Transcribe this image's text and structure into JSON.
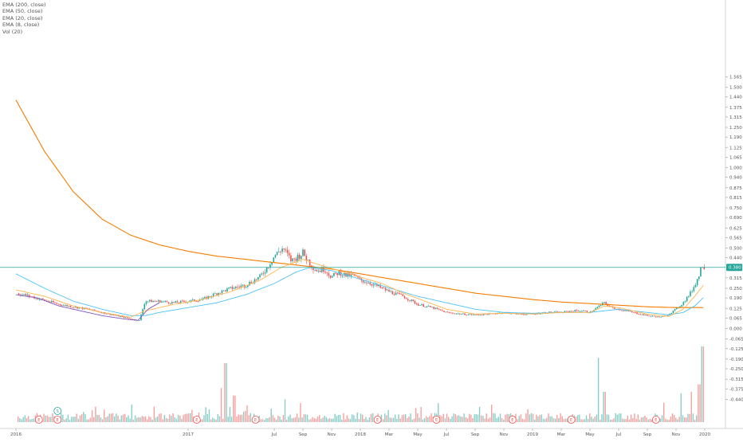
{
  "legend": {
    "ema200": "EMA (200, close)",
    "ema50": "EMA (50, close)",
    "ema20": "EMA (20, close)",
    "ema8": "EMA (8, close)",
    "vol": "Vol (20)"
  },
  "colors": {
    "up": "#26a69a",
    "down": "#ef5350",
    "ema200": "#f57c00",
    "ema50": "#4fc3f7",
    "ema20": "#ffb74d",
    "ema8": "#7e57c2",
    "last_line": "#26a69a",
    "event": "#ef5350",
    "event_split": "#26a69a"
  },
  "chart_data": {
    "type": "candlestick",
    "y_axis_ticks": [
      "1.565",
      "1.500",
      "1.440",
      "1.375",
      "1.315",
      "1.250",
      "1.190",
      "1.125",
      "1.065",
      "1.000",
      "0.940",
      "0.875",
      "0.815",
      "0.750",
      "0.690",
      "0.625",
      "0.565",
      "0.500",
      "0.440",
      "0.315",
      "0.250",
      "0.190",
      "0.125",
      "0.065",
      "0.000",
      "-0.065",
      "-0.125",
      "-0.190",
      "-0.250",
      "-0.315",
      "-0.375",
      "-0.440"
    ],
    "y_axis_values": [
      1.565,
      1.5,
      1.44,
      1.375,
      1.315,
      1.25,
      1.19,
      1.125,
      1.065,
      1.0,
      0.94,
      0.875,
      0.815,
      0.75,
      0.69,
      0.625,
      0.565,
      0.5,
      0.44,
      0.315,
      0.25,
      0.19,
      0.125,
      0.065,
      0.0,
      -0.065,
      -0.125,
      -0.19,
      -0.25,
      -0.315,
      -0.375,
      -0.44
    ],
    "x_axis_labels": [
      "2016",
      "2017",
      "Jul",
      "Sep",
      "Nov",
      "2018",
      "Mar",
      "May",
      "Jul",
      "Sep",
      "Nov",
      "2019",
      "Mar",
      "May",
      "Jul",
      "Sep",
      "Nov",
      "2020"
    ],
    "x_axis_months": [
      0,
      12,
      18,
      20,
      22,
      24,
      26,
      28,
      30,
      32,
      34,
      36,
      38,
      40,
      42,
      44,
      46,
      48
    ],
    "x_range_months": [
      0,
      47.5
    ],
    "last_price": 0.38,
    "last_price_label": "0.380",
    "price_keypoints": [
      [
        0.0,
        0.22
      ],
      [
        1.0,
        0.2
      ],
      [
        3.0,
        0.15
      ],
      [
        5.0,
        0.12
      ],
      [
        7.0,
        0.08
      ],
      [
        8.0,
        0.06
      ],
      [
        8.6,
        0.05
      ],
      [
        9.0,
        0.17
      ],
      [
        10.0,
        0.17
      ],
      [
        11.0,
        0.16
      ],
      [
        12.0,
        0.17
      ],
      [
        13.0,
        0.18
      ],
      [
        14.0,
        0.22
      ],
      [
        15.0,
        0.25
      ],
      [
        16.0,
        0.27
      ],
      [
        17.0,
        0.32
      ],
      [
        17.5,
        0.38
      ],
      [
        18.0,
        0.45
      ],
      [
        18.6,
        0.5
      ],
      [
        19.2,
        0.42
      ],
      [
        20.0,
        0.47
      ],
      [
        20.6,
        0.39
      ],
      [
        21.0,
        0.36
      ],
      [
        21.5,
        0.37
      ],
      [
        22.0,
        0.32
      ],
      [
        22.5,
        0.35
      ],
      [
        23.0,
        0.33
      ],
      [
        23.5,
        0.33
      ],
      [
        24.0,
        0.3
      ],
      [
        24.5,
        0.29
      ],
      [
        25.0,
        0.27
      ],
      [
        25.5,
        0.25
      ],
      [
        26.0,
        0.23
      ],
      [
        27.0,
        0.2
      ],
      [
        28.0,
        0.15
      ],
      [
        29.0,
        0.13
      ],
      [
        30.0,
        0.1
      ],
      [
        31.0,
        0.09
      ],
      [
        32.0,
        0.085
      ],
      [
        33.0,
        0.09
      ],
      [
        34.0,
        0.1
      ],
      [
        35.0,
        0.09
      ],
      [
        36.0,
        0.09
      ],
      [
        37.0,
        0.1
      ],
      [
        38.0,
        0.1
      ],
      [
        38.8,
        0.11
      ],
      [
        39.5,
        0.11
      ],
      [
        40.0,
        0.1
      ],
      [
        40.5,
        0.13
      ],
      [
        41.0,
        0.16
      ],
      [
        41.5,
        0.13
      ],
      [
        42.0,
        0.12
      ],
      [
        43.0,
        0.1
      ],
      [
        44.0,
        0.08
      ],
      [
        45.0,
        0.07
      ],
      [
        45.5,
        0.09
      ],
      [
        46.0,
        0.12
      ],
      [
        46.5,
        0.16
      ],
      [
        47.0,
        0.22
      ],
      [
        47.3,
        0.27
      ],
      [
        47.6,
        0.33
      ],
      [
        47.8,
        0.4
      ],
      [
        48.0,
        0.38
      ]
    ],
    "ema_keypoints": {
      "ema200": [
        [
          0.0,
          1.42
        ],
        [
          2.0,
          1.1
        ],
        [
          4.0,
          0.85
        ],
        [
          6.0,
          0.68
        ],
        [
          8.0,
          0.58
        ],
        [
          10.0,
          0.52
        ],
        [
          12.0,
          0.48
        ],
        [
          14.0,
          0.45
        ],
        [
          16.0,
          0.43
        ],
        [
          18.0,
          0.41
        ],
        [
          20.0,
          0.39
        ],
        [
          22.0,
          0.37
        ],
        [
          24.0,
          0.34
        ],
        [
          26.0,
          0.31
        ],
        [
          28.0,
          0.28
        ],
        [
          30.0,
          0.25
        ],
        [
          32.0,
          0.22
        ],
        [
          34.0,
          0.2
        ],
        [
          36.0,
          0.18
        ],
        [
          38.0,
          0.165
        ],
        [
          40.0,
          0.155
        ],
        [
          42.0,
          0.145
        ],
        [
          44.0,
          0.135
        ],
        [
          46.0,
          0.13
        ],
        [
          47.0,
          0.13
        ],
        [
          48.0,
          0.13
        ]
      ],
      "ema50": [
        [
          0.0,
          0.34
        ],
        [
          2.0,
          0.25
        ],
        [
          4.0,
          0.17
        ],
        [
          6.0,
          0.12
        ],
        [
          8.0,
          0.08
        ],
        [
          9.0,
          0.08
        ],
        [
          10.0,
          0.1
        ],
        [
          12.0,
          0.13
        ],
        [
          14.0,
          0.16
        ],
        [
          16.0,
          0.21
        ],
        [
          18.0,
          0.28
        ],
        [
          19.5,
          0.35
        ],
        [
          20.5,
          0.38
        ],
        [
          22.0,
          0.36
        ],
        [
          23.5,
          0.32
        ],
        [
          25.0,
          0.28
        ],
        [
          26.5,
          0.24
        ],
        [
          28.0,
          0.2
        ],
        [
          30.0,
          0.16
        ],
        [
          32.0,
          0.12
        ],
        [
          34.0,
          0.1
        ],
        [
          36.0,
          0.095
        ],
        [
          38.0,
          0.1
        ],
        [
          40.0,
          0.1
        ],
        [
          41.0,
          0.11
        ],
        [
          42.0,
          0.12
        ],
        [
          44.0,
          0.1
        ],
        [
          45.5,
          0.085
        ],
        [
          46.5,
          0.1
        ],
        [
          47.3,
          0.14
        ],
        [
          48.0,
          0.2
        ]
      ],
      "ema20": [
        [
          0.0,
          0.24
        ],
        [
          2.0,
          0.2
        ],
        [
          4.0,
          0.14
        ],
        [
          6.0,
          0.1
        ],
        [
          8.0,
          0.07
        ],
        [
          9.0,
          0.11
        ],
        [
          11.0,
          0.15
        ],
        [
          13.0,
          0.18
        ],
        [
          15.0,
          0.23
        ],
        [
          17.0,
          0.3
        ],
        [
          18.5,
          0.38
        ],
        [
          20.0,
          0.43
        ],
        [
          21.0,
          0.4
        ],
        [
          22.5,
          0.36
        ],
        [
          24.0,
          0.32
        ],
        [
          25.5,
          0.28
        ],
        [
          27.0,
          0.22
        ],
        [
          28.5,
          0.17
        ],
        [
          30.0,
          0.12
        ],
        [
          32.0,
          0.09
        ],
        [
          34.0,
          0.095
        ],
        [
          36.0,
          0.09
        ],
        [
          38.0,
          0.1
        ],
        [
          40.0,
          0.1
        ],
        [
          41.0,
          0.14
        ],
        [
          42.0,
          0.13
        ],
        [
          44.0,
          0.09
        ],
        [
          45.5,
          0.075
        ],
        [
          46.5,
          0.12
        ],
        [
          47.3,
          0.2
        ],
        [
          48.0,
          0.28
        ]
      ],
      "ema8": [
        [
          0.0,
          0.21
        ],
        [
          1.5,
          0.19
        ],
        [
          3.0,
          0.14
        ],
        [
          4.5,
          0.11
        ],
        [
          6.0,
          0.08
        ],
        [
          7.5,
          0.06
        ],
        [
          8.5,
          0.05
        ],
        [
          9.2,
          0.12
        ],
        [
          10.0,
          0.16
        ]
      ]
    },
    "volume_events": [
      {
        "m": 14.3,
        "v": 0.45
      },
      {
        "m": 14.6,
        "v": 0.78
      },
      {
        "m": 14.9,
        "v": 0.2
      },
      {
        "m": 15.2,
        "v": 0.35
      },
      {
        "m": 18.7,
        "v": 0.3
      },
      {
        "m": 19.8,
        "v": 0.25
      },
      {
        "m": 28.2,
        "v": 0.2
      },
      {
        "m": 40.6,
        "v": 0.85
      },
      {
        "m": 41.0,
        "v": 0.4
      },
      {
        "m": 46.3,
        "v": 0.38
      },
      {
        "m": 47.1,
        "v": 0.4
      },
      {
        "m": 47.6,
        "v": 0.5
      },
      {
        "m": 47.85,
        "v": 1.0
      },
      {
        "m": 48.0,
        "v": 0.62
      }
    ],
    "event_markers": [
      {
        "m": 1.6,
        "label": "E"
      },
      {
        "m": 2.9,
        "label": "E"
      },
      {
        "m": 12.6,
        "label": "E"
      },
      {
        "m": 16.7,
        "label": "E"
      },
      {
        "m": 25.2,
        "label": "E"
      },
      {
        "m": 29.3,
        "label": "E"
      },
      {
        "m": 34.6,
        "label": "E"
      },
      {
        "m": 38.7,
        "label": "E"
      },
      {
        "m": 44.6,
        "label": "E"
      }
    ],
    "split_marker": {
      "m": 2.9,
      "label": "S"
    }
  }
}
